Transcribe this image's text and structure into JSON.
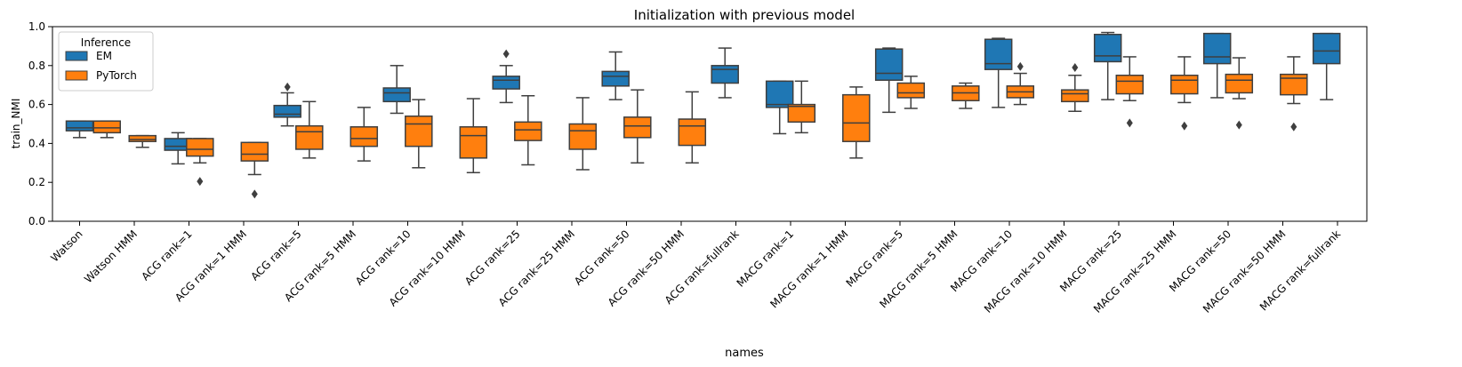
{
  "chart_data": {
    "type": "box",
    "title": "Initialization with previous model",
    "xlabel": "names",
    "ylabel": "train_NMI",
    "ylim": [
      0,
      1
    ],
    "yticks": [
      "0.0",
      "0.2",
      "0.4",
      "0.6",
      "0.8",
      "1.0"
    ],
    "grid": false,
    "legend": {
      "title": "Inference",
      "placement": "top-left",
      "entries": [
        {
          "name": "EM",
          "color": "#1f77b4"
        },
        {
          "name": "PyTorch",
          "color": "#ff7f0e"
        }
      ]
    },
    "categories": [
      "Watson",
      "Watson HMM",
      "ACG rank=1",
      "ACG rank=1 HMM",
      "ACG rank=5",
      "ACG rank=5 HMM",
      "ACG rank=10",
      "ACG rank=10 HMM",
      "ACG rank=25",
      "ACG rank=25 HMM",
      "ACG rank=50",
      "ACG rank=50 HMM",
      "ACG rank=fullrank",
      "MACG rank=1",
      "MACG rank=1 HMM",
      "MACG rank=5",
      "MACG rank=5 HMM",
      "MACG rank=10",
      "MACG rank=10 HMM",
      "MACG rank=25",
      "MACG rank=25 HMM",
      "MACG rank=50",
      "MACG rank=50 HMM",
      "MACG rank=fullrank"
    ],
    "boxes": [
      {
        "category": "Watson",
        "series": "EM",
        "pos": 0.0,
        "whislo": 0.43,
        "q1": 0.465,
        "med": 0.48,
        "q3": 0.515,
        "whishi": 0.515,
        "fliers": []
      },
      {
        "category": "Watson",
        "series": "PyTorch",
        "pos": 0.5,
        "whislo": 0.43,
        "q1": 0.455,
        "med": 0.48,
        "q3": 0.515,
        "whishi": 0.515,
        "fliers": []
      },
      {
        "category": "Watson HMM",
        "series": "PyTorch",
        "pos": 1.15,
        "whislo": 0.38,
        "q1": 0.41,
        "med": 0.42,
        "q3": 0.44,
        "whishi": 0.44,
        "fliers": []
      },
      {
        "category": "ACG rank=1",
        "series": "EM",
        "pos": 1.8,
        "whislo": 0.295,
        "q1": 0.365,
        "med": 0.385,
        "q3": 0.425,
        "whishi": 0.455,
        "fliers": []
      },
      {
        "category": "ACG rank=1",
        "series": "PyTorch",
        "pos": 2.2,
        "whislo": 0.3,
        "q1": 0.335,
        "med": 0.37,
        "q3": 0.425,
        "whishi": 0.425,
        "fliers": [
          0.205
        ]
      },
      {
        "category": "ACG rank=1 HMM",
        "series": "PyTorch",
        "pos": 3.2,
        "whislo": 0.24,
        "q1": 0.31,
        "med": 0.345,
        "q3": 0.405,
        "whishi": 0.405,
        "fliers": [
          0.14
        ]
      },
      {
        "category": "ACG rank=5",
        "series": "EM",
        "pos": 3.8,
        "whislo": 0.49,
        "q1": 0.535,
        "med": 0.55,
        "q3": 0.595,
        "whishi": 0.66,
        "fliers": [
          0.69
        ]
      },
      {
        "category": "ACG rank=5",
        "series": "PyTorch",
        "pos": 4.2,
        "whislo": 0.325,
        "q1": 0.37,
        "med": 0.46,
        "q3": 0.49,
        "whishi": 0.615,
        "fliers": []
      },
      {
        "category": "ACG rank=5 HMM",
        "series": "PyTorch",
        "pos": 5.2,
        "whislo": 0.31,
        "q1": 0.385,
        "med": 0.425,
        "q3": 0.485,
        "whishi": 0.585,
        "fliers": []
      },
      {
        "category": "ACG rank=10",
        "series": "EM",
        "pos": 5.8,
        "whislo": 0.555,
        "q1": 0.615,
        "med": 0.66,
        "q3": 0.685,
        "whishi": 0.8,
        "fliers": []
      },
      {
        "category": "ACG rank=10",
        "series": "PyTorch",
        "pos": 6.2,
        "whislo": 0.275,
        "q1": 0.385,
        "med": 0.5,
        "q3": 0.54,
        "whishi": 0.625,
        "fliers": []
      },
      {
        "category": "ACG rank=10 HMM",
        "series": "PyTorch",
        "pos": 7.2,
        "whislo": 0.25,
        "q1": 0.325,
        "med": 0.44,
        "q3": 0.485,
        "whishi": 0.63,
        "fliers": []
      },
      {
        "category": "ACG rank=25",
        "series": "EM",
        "pos": 7.8,
        "whislo": 0.61,
        "q1": 0.68,
        "med": 0.725,
        "q3": 0.745,
        "whishi": 0.8,
        "fliers": [
          0.86
        ]
      },
      {
        "category": "ACG rank=25",
        "series": "PyTorch",
        "pos": 8.2,
        "whislo": 0.29,
        "q1": 0.415,
        "med": 0.47,
        "q3": 0.51,
        "whishi": 0.645,
        "fliers": []
      },
      {
        "category": "ACG rank=25 HMM",
        "series": "PyTorch",
        "pos": 9.2,
        "whislo": 0.265,
        "q1": 0.37,
        "med": 0.465,
        "q3": 0.5,
        "whishi": 0.635,
        "fliers": []
      },
      {
        "category": "ACG rank=50",
        "series": "EM",
        "pos": 9.8,
        "whislo": 0.625,
        "q1": 0.695,
        "med": 0.745,
        "q3": 0.77,
        "whishi": 0.87,
        "fliers": []
      },
      {
        "category": "ACG rank=50",
        "series": "PyTorch",
        "pos": 10.2,
        "whislo": 0.3,
        "q1": 0.43,
        "med": 0.49,
        "q3": 0.535,
        "whishi": 0.675,
        "fliers": []
      },
      {
        "category": "ACG rank=50 HMM",
        "series": "PyTorch",
        "pos": 11.2,
        "whislo": 0.3,
        "q1": 0.39,
        "med": 0.49,
        "q3": 0.525,
        "whishi": 0.665,
        "fliers": []
      },
      {
        "category": "ACG rank=fullrank",
        "series": "EM",
        "pos": 11.8,
        "whislo": 0.635,
        "q1": 0.71,
        "med": 0.78,
        "q3": 0.8,
        "whishi": 0.89,
        "fliers": []
      },
      {
        "category": "MACG rank=1",
        "series": "EM",
        "pos": 12.8,
        "whislo": 0.45,
        "q1": 0.585,
        "med": 0.6,
        "q3": 0.72,
        "whishi": 0.72,
        "fliers": []
      },
      {
        "category": "MACG rank=1",
        "series": "PyTorch",
        "pos": 13.2,
        "whislo": 0.455,
        "q1": 0.51,
        "med": 0.59,
        "q3": 0.6,
        "whishi": 0.72,
        "fliers": []
      },
      {
        "category": "MACG rank=1 HMM",
        "series": "PyTorch",
        "pos": 14.2,
        "whislo": 0.325,
        "q1": 0.41,
        "med": 0.505,
        "q3": 0.65,
        "whishi": 0.69,
        "fliers": []
      },
      {
        "category": "MACG rank=5",
        "series": "EM",
        "pos": 14.8,
        "whislo": 0.56,
        "q1": 0.725,
        "med": 0.76,
        "q3": 0.885,
        "whishi": 0.89,
        "fliers": []
      },
      {
        "category": "MACG rank=5",
        "series": "PyTorch",
        "pos": 15.2,
        "whislo": 0.58,
        "q1": 0.635,
        "med": 0.66,
        "q3": 0.71,
        "whishi": 0.745,
        "fliers": []
      },
      {
        "category": "MACG rank=5 HMM",
        "series": "PyTorch",
        "pos": 16.2,
        "whislo": 0.58,
        "q1": 0.62,
        "med": 0.66,
        "q3": 0.695,
        "whishi": 0.71,
        "fliers": []
      },
      {
        "category": "MACG rank=10",
        "series": "EM",
        "pos": 16.8,
        "whislo": 0.585,
        "q1": 0.78,
        "med": 0.81,
        "q3": 0.935,
        "whishi": 0.94,
        "fliers": []
      },
      {
        "category": "MACG rank=10",
        "series": "PyTorch",
        "pos": 17.2,
        "whislo": 0.6,
        "q1": 0.635,
        "med": 0.665,
        "q3": 0.695,
        "whishi": 0.76,
        "fliers": [
          0.795
        ]
      },
      {
        "category": "MACG rank=10 HMM",
        "series": "PyTorch",
        "pos": 18.2,
        "whislo": 0.565,
        "q1": 0.615,
        "med": 0.655,
        "q3": 0.675,
        "whishi": 0.75,
        "fliers": [
          0.79
        ]
      },
      {
        "category": "MACG rank=25",
        "series": "EM",
        "pos": 18.8,
        "whislo": 0.625,
        "q1": 0.82,
        "med": 0.85,
        "q3": 0.96,
        "whishi": 0.97,
        "fliers": []
      },
      {
        "category": "MACG rank=25",
        "series": "PyTorch",
        "pos": 19.2,
        "whislo": 0.62,
        "q1": 0.655,
        "med": 0.72,
        "q3": 0.75,
        "whishi": 0.845,
        "fliers": [
          0.505
        ]
      },
      {
        "category": "MACG rank=25 HMM",
        "series": "PyTorch",
        "pos": 20.2,
        "whislo": 0.61,
        "q1": 0.655,
        "med": 0.725,
        "q3": 0.75,
        "whishi": 0.845,
        "fliers": [
          0.49
        ]
      },
      {
        "category": "MACG rank=50",
        "series": "EM",
        "pos": 20.8,
        "whislo": 0.635,
        "q1": 0.81,
        "med": 0.845,
        "q3": 0.965,
        "whishi": 0.965,
        "fliers": []
      },
      {
        "category": "MACG rank=50",
        "series": "PyTorch",
        "pos": 21.2,
        "whislo": 0.63,
        "q1": 0.66,
        "med": 0.725,
        "q3": 0.755,
        "whishi": 0.84,
        "fliers": [
          0.495
        ]
      },
      {
        "category": "MACG rank=50 HMM",
        "series": "PyTorch",
        "pos": 22.2,
        "whislo": 0.605,
        "q1": 0.65,
        "med": 0.735,
        "q3": 0.755,
        "whishi": 0.845,
        "fliers": [
          0.485
        ]
      },
      {
        "category": "MACG rank=fullrank",
        "series": "EM",
        "pos": 22.8,
        "whislo": 0.625,
        "q1": 0.81,
        "med": 0.875,
        "q3": 0.965,
        "whishi": 0.965,
        "fliers": []
      }
    ]
  }
}
